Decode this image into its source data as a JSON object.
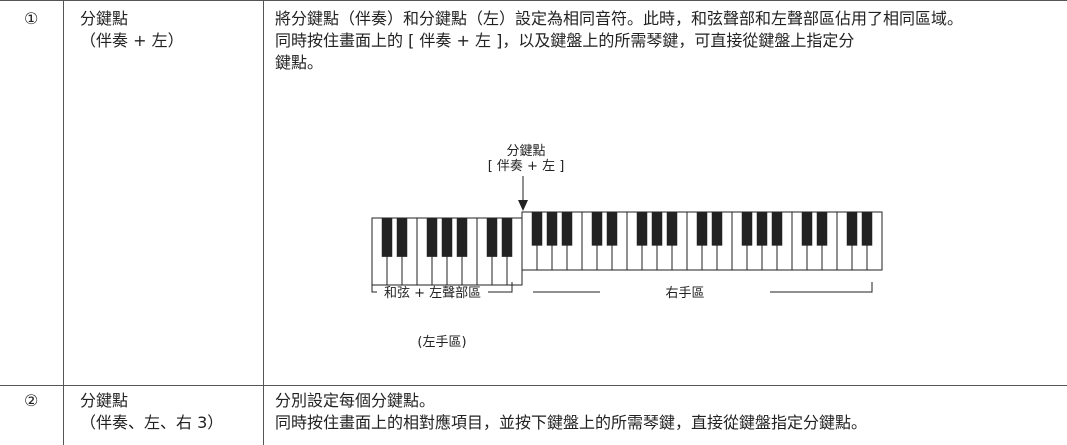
{
  "table": {
    "rows": [
      {
        "number": "①",
        "name": [
          "分鍵點",
          "（伴奏 + 左）"
        ],
        "description": [
          "將分鍵點（伴奏）和分鍵點（左）設定為相同音符。此時，和弦聲部和左聲部區佔用了相同區域。",
          "同時按住畫面上的 [ 伴奏 + 左 ]，以及鍵盤上的所需琴鍵，可直接從鍵盤上指定分鍵點。"
        ],
        "diagram": {
          "split_label": [
            "分鍵點",
            "[ 伴奏 + 左 ]"
          ],
          "left_zone": "和弦 + 左聲部區",
          "right_zone": "右手區",
          "left_note": "(左手區)"
        }
      },
      {
        "number": "②",
        "name": [
          "分鍵點",
          "（伴奏、左、右 3）"
        ],
        "description": [
          "分別設定每個分鍵點。",
          "同時按住畫面上的相對應項目，並按下鍵盤上的所需琴鍵，直接從鍵盤指定分鍵點。"
        ]
      }
    ]
  }
}
